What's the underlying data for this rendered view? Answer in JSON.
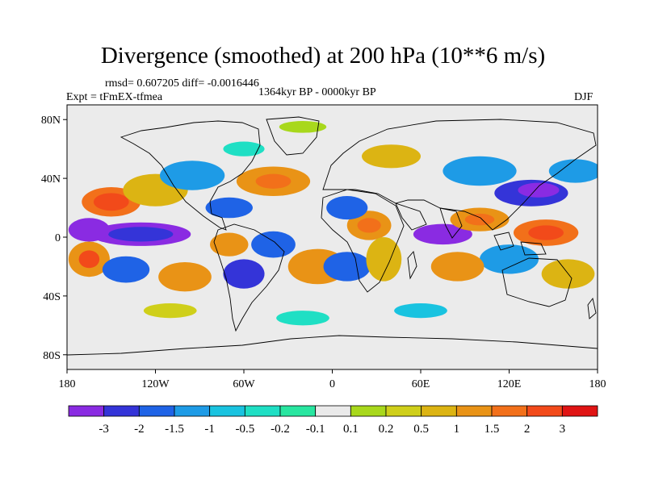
{
  "title": "Divergence (smoothed) at 200 hPa (10**6 m/s)",
  "stats_line": "rmsd= 0.607205 diff= -0.0016446",
  "center_line": "1364kyr BP - 0000kyr BP",
  "experiment_line": "Expt = tFmEX-tfmea",
  "season": "DJF",
  "lat_ticks": [
    "80N",
    "40N",
    "0",
    "40S",
    "80S"
  ],
  "lon_ticks": [
    "180",
    "120W",
    "60W",
    "0",
    "60E",
    "120E",
    "180"
  ],
  "colorbar": {
    "colors": [
      "#8a2be2",
      "#3434d8",
      "#1f63e6",
      "#1e9be6",
      "#19c3e0",
      "#1fdfc4",
      "#28e6a0",
      "#eaeaea",
      "#a8d81c",
      "#cfcf1a",
      "#dcb413",
      "#e99316",
      "#f2701a",
      "#f24a1a",
      "#e01414"
    ],
    "labels": [
      "-3",
      "-2",
      "-1.5",
      "-1",
      "-0.5",
      "-0.2",
      "-0.1",
      "0.1",
      "0.2",
      "0.5",
      "1",
      "1.5",
      "2",
      "3"
    ]
  },
  "map_background": "#ebebeb",
  "regions": [
    {
      "lon": -130,
      "lat": 2,
      "rx": 34,
      "ry": 8,
      "level": 0
    },
    {
      "lon": -130,
      "lat": 2,
      "rx": 22,
      "ry": 5,
      "level": 1
    },
    {
      "lon": -165,
      "lat": 5,
      "rx": 14,
      "ry": 8,
      "level": 0
    },
    {
      "lon": -150,
      "lat": 24,
      "rx": 20,
      "ry": 10,
      "level": 12
    },
    {
      "lon": -150,
      "lat": 24,
      "rx": 12,
      "ry": 6,
      "level": 13
    },
    {
      "lon": -120,
      "lat": 32,
      "rx": 22,
      "ry": 11,
      "level": 10
    },
    {
      "lon": -95,
      "lat": 42,
      "rx": 22,
      "ry": 10,
      "level": 3
    },
    {
      "lon": -40,
      "lat": 38,
      "rx": 25,
      "ry": 10,
      "level": 11
    },
    {
      "lon": -40,
      "lat": 38,
      "rx": 12,
      "ry": 5,
      "level": 12
    },
    {
      "lon": -70,
      "lat": 20,
      "rx": 16,
      "ry": 7,
      "level": 2
    },
    {
      "lon": -40,
      "lat": -5,
      "rx": 15,
      "ry": 9,
      "level": 2
    },
    {
      "lon": -70,
      "lat": -5,
      "rx": 13,
      "ry": 8,
      "level": 11
    },
    {
      "lon": -165,
      "lat": -15,
      "rx": 14,
      "ry": 12,
      "level": 11
    },
    {
      "lon": -165,
      "lat": -15,
      "rx": 7,
      "ry": 6,
      "level": 13
    },
    {
      "lon": -140,
      "lat": -22,
      "rx": 16,
      "ry": 9,
      "level": 2
    },
    {
      "lon": -100,
      "lat": -27,
      "rx": 18,
      "ry": 10,
      "level": 11
    },
    {
      "lon": -60,
      "lat": -25,
      "rx": 14,
      "ry": 10,
      "level": 1
    },
    {
      "lon": -10,
      "lat": -20,
      "rx": 20,
      "ry": 12,
      "level": 11
    },
    {
      "lon": 10,
      "lat": -20,
      "rx": 16,
      "ry": 10,
      "level": 2
    },
    {
      "lon": 25,
      "lat": 8,
      "rx": 15,
      "ry": 10,
      "level": 11
    },
    {
      "lon": 25,
      "lat": 8,
      "rx": 8,
      "ry": 5,
      "level": 12
    },
    {
      "lon": 10,
      "lat": 20,
      "rx": 14,
      "ry": 8,
      "level": 2
    },
    {
      "lon": 35,
      "lat": -15,
      "rx": 12,
      "ry": 15,
      "level": 10
    },
    {
      "lon": 75,
      "lat": 2,
      "rx": 20,
      "ry": 7,
      "level": 0
    },
    {
      "lon": 100,
      "lat": 12,
      "rx": 20,
      "ry": 8,
      "level": 11
    },
    {
      "lon": 100,
      "lat": 12,
      "rx": 10,
      "ry": 4,
      "level": 12
    },
    {
      "lon": 135,
      "lat": 30,
      "rx": 25,
      "ry": 9,
      "level": 1
    },
    {
      "lon": 140,
      "lat": 32,
      "rx": 14,
      "ry": 5,
      "level": 0
    },
    {
      "lon": 165,
      "lat": 45,
      "rx": 18,
      "ry": 8,
      "level": 3
    },
    {
      "lon": 145,
      "lat": 3,
      "rx": 22,
      "ry": 9,
      "level": 12
    },
    {
      "lon": 145,
      "lat": 3,
      "rx": 12,
      "ry": 5,
      "level": 13
    },
    {
      "lon": 120,
      "lat": -15,
      "rx": 20,
      "ry": 10,
      "level": 3
    },
    {
      "lon": 85,
      "lat": -20,
      "rx": 18,
      "ry": 10,
      "level": 11
    },
    {
      "lon": 160,
      "lat": -25,
      "rx": 18,
      "ry": 10,
      "level": 10
    },
    {
      "lon": 100,
      "lat": 45,
      "rx": 25,
      "ry": 10,
      "level": 3
    },
    {
      "lon": 40,
      "lat": 55,
      "rx": 20,
      "ry": 8,
      "level": 10
    },
    {
      "lon": -60,
      "lat": 60,
      "rx": 14,
      "ry": 5,
      "level": 5
    },
    {
      "lon": -20,
      "lat": 75,
      "rx": 16,
      "ry": 4,
      "level": 8
    },
    {
      "lon": -20,
      "lat": -55,
      "rx": 18,
      "ry": 5,
      "level": 5
    },
    {
      "lon": 60,
      "lat": -50,
      "rx": 18,
      "ry": 5,
      "level": 4
    },
    {
      "lon": -110,
      "lat": -50,
      "rx": 18,
      "ry": 5,
      "level": 9
    }
  ]
}
